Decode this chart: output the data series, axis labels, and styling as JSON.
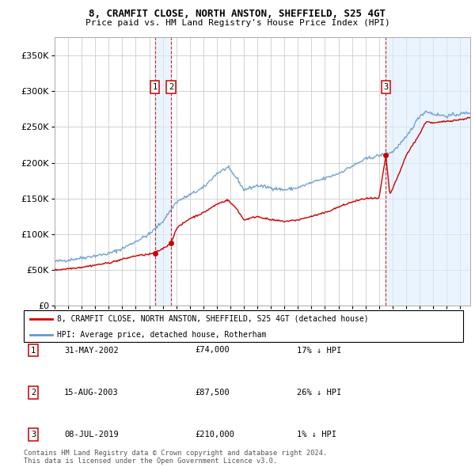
{
  "title1": "8, CRAMFIT CLOSE, NORTH ANSTON, SHEFFIELD, S25 4GT",
  "title2": "Price paid vs. HM Land Registry's House Price Index (HPI)",
  "legend_line1": "8, CRAMFIT CLOSE, NORTH ANSTON, SHEFFIELD, S25 4GT (detached house)",
  "legend_line2": "HPI: Average price, detached house, Rotherham",
  "sale_color": "#cc0000",
  "hpi_color": "#6699cc",
  "annotation_box_color": "#cc0000",
  "shade_color": "#ddeeff",
  "grid_color": "#cccccc",
  "bg_color": "#ffffff",
  "footnote": "Contains HM Land Registry data © Crown copyright and database right 2024.\nThis data is licensed under the Open Government Licence v3.0.",
  "ylim": [
    0,
    375000
  ],
  "yticks": [
    0,
    50000,
    100000,
    150000,
    200000,
    250000,
    300000,
    350000
  ],
  "ytick_labels": [
    "£0",
    "£50K",
    "£100K",
    "£150K",
    "£200K",
    "£250K",
    "£300K",
    "£350K"
  ],
  "sales": [
    {
      "date_num": 2002.42,
      "price": 74000,
      "label": "1"
    },
    {
      "date_num": 2003.62,
      "price": 87500,
      "label": "2"
    },
    {
      "date_num": 2019.51,
      "price": 210000,
      "label": "3"
    }
  ],
  "sale_annotations": [
    {
      "num": "1",
      "date": "31-MAY-2002",
      "price": "£74,000",
      "hpi_diff": "17% ↓ HPI"
    },
    {
      "num": "2",
      "date": "15-AUG-2003",
      "price": "£87,500",
      "hpi_diff": "26% ↓ HPI"
    },
    {
      "num": "3",
      "date": "08-JUL-2019",
      "price": "£210,000",
      "hpi_diff": "1% ↓ HPI"
    }
  ],
  "shade_regions": [
    {
      "x_start": 2002.42,
      "x_end": 2003.62
    },
    {
      "x_start": 2019.51,
      "x_end": 2025.75
    }
  ],
  "xlim": [
    1995.0,
    2025.75
  ],
  "xticks": [
    1995,
    1996,
    1997,
    1998,
    1999,
    2000,
    2001,
    2002,
    2003,
    2004,
    2005,
    2006,
    2007,
    2008,
    2009,
    2010,
    2011,
    2012,
    2013,
    2014,
    2015,
    2016,
    2017,
    2018,
    2019,
    2020,
    2021,
    2022,
    2023,
    2024,
    2025
  ],
  "hpi_anchors": [
    [
      1995.0,
      62000
    ],
    [
      1996.0,
      64000
    ],
    [
      1997.0,
      67000
    ],
    [
      1998.0,
      70000
    ],
    [
      1999.0,
      73000
    ],
    [
      2000.0,
      80000
    ],
    [
      2001.0,
      90000
    ],
    [
      2002.0,
      100000
    ],
    [
      2003.0,
      118000
    ],
    [
      2004.0,
      145000
    ],
    [
      2005.0,
      155000
    ],
    [
      2006.0,
      165000
    ],
    [
      2007.0,
      185000
    ],
    [
      2007.8,
      193000
    ],
    [
      2008.5,
      178000
    ],
    [
      2009.0,
      162000
    ],
    [
      2010.0,
      168000
    ],
    [
      2011.0,
      165000
    ],
    [
      2012.0,
      162000
    ],
    [
      2013.0,
      165000
    ],
    [
      2014.0,
      172000
    ],
    [
      2015.0,
      178000
    ],
    [
      2016.0,
      185000
    ],
    [
      2017.0,
      195000
    ],
    [
      2018.0,
      205000
    ],
    [
      2019.0,
      210000
    ],
    [
      2019.5,
      212000
    ],
    [
      2020.0,
      215000
    ],
    [
      2021.0,
      235000
    ],
    [
      2022.0,
      265000
    ],
    [
      2022.5,
      272000
    ],
    [
      2023.0,
      268000
    ],
    [
      2024.0,
      265000
    ],
    [
      2025.0,
      268000
    ],
    [
      2025.75,
      270000
    ]
  ],
  "sale_anchors": [
    [
      1995.0,
      50000
    ],
    [
      1996.0,
      52000
    ],
    [
      1997.0,
      54000
    ],
    [
      1998.0,
      57000
    ],
    [
      1999.0,
      60000
    ],
    [
      2000.0,
      65000
    ],
    [
      2001.0,
      70000
    ],
    [
      2002.0,
      72000
    ],
    [
      2002.42,
      74000
    ],
    [
      2003.0,
      80000
    ],
    [
      2003.62,
      87500
    ],
    [
      2004.0,
      108000
    ],
    [
      2005.0,
      122000
    ],
    [
      2006.0,
      130000
    ],
    [
      2007.0,
      142000
    ],
    [
      2007.8,
      148000
    ],
    [
      2008.5,
      135000
    ],
    [
      2009.0,
      120000
    ],
    [
      2010.0,
      125000
    ],
    [
      2011.0,
      120000
    ],
    [
      2012.0,
      118000
    ],
    [
      2013.0,
      120000
    ],
    [
      2014.0,
      125000
    ],
    [
      2015.0,
      130000
    ],
    [
      2016.0,
      138000
    ],
    [
      2017.0,
      145000
    ],
    [
      2018.0,
      150000
    ],
    [
      2019.0,
      150000
    ],
    [
      2019.51,
      210000
    ],
    [
      2019.8,
      155000
    ],
    [
      2020.5,
      185000
    ],
    [
      2021.0,
      210000
    ],
    [
      2022.0,
      240000
    ],
    [
      2022.5,
      258000
    ],
    [
      2023.0,
      255000
    ],
    [
      2024.0,
      258000
    ],
    [
      2025.0,
      260000
    ],
    [
      2025.75,
      263000
    ]
  ]
}
